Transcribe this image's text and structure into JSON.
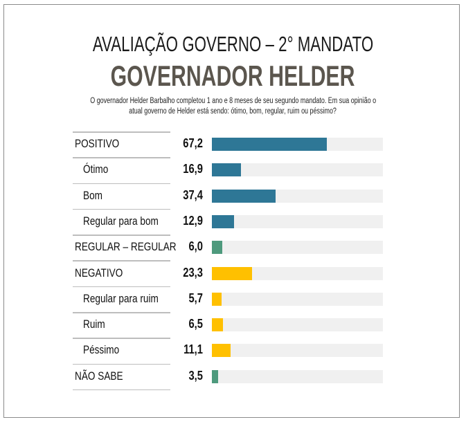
{
  "chart_data": {
    "type": "bar",
    "title": "AVALIAÇÃO GOVERNO – 2° MANDATO",
    "subtitle": "GOVERNADOR HELDER",
    "question_line1": "O governador Helder Barbalho completou 1 ano e 8 meses de seu segundo mandato. Em sua opinião o",
    "question_line2": "atual governo de Helder está sendo: ótimo, bom, regular, ruim ou péssimo?",
    "xlim": [
      0,
      100
    ],
    "categories": [
      "POSITIVO",
      "Ótimo",
      "Bom",
      "Regular para bom",
      "REGULAR – REGULAR",
      "NEGATIVO",
      "Regular para ruim",
      "Ruim",
      "Péssimo",
      "NÃO SABE"
    ],
    "values": [
      67.2,
      16.9,
      37.4,
      12.9,
      6.0,
      23.3,
      5.7,
      6.5,
      11.1,
      3.5
    ],
    "labels": [
      "67,2",
      "16,9",
      "37,4",
      "12,9",
      "6,0",
      "23,3",
      "5,7",
      "6,5",
      "11,1",
      "3,5"
    ],
    "indented": [
      false,
      true,
      true,
      true,
      false,
      false,
      true,
      true,
      true,
      false
    ],
    "groups": [
      "pos",
      "pos",
      "pos",
      "pos",
      "neu",
      "neg",
      "neg",
      "neg",
      "neg",
      "neu"
    ],
    "colors": {
      "pos": "#2e7796",
      "neu": "#4e9a7d",
      "neg": "#ffc000",
      "track": "#f0f0f0"
    }
  }
}
